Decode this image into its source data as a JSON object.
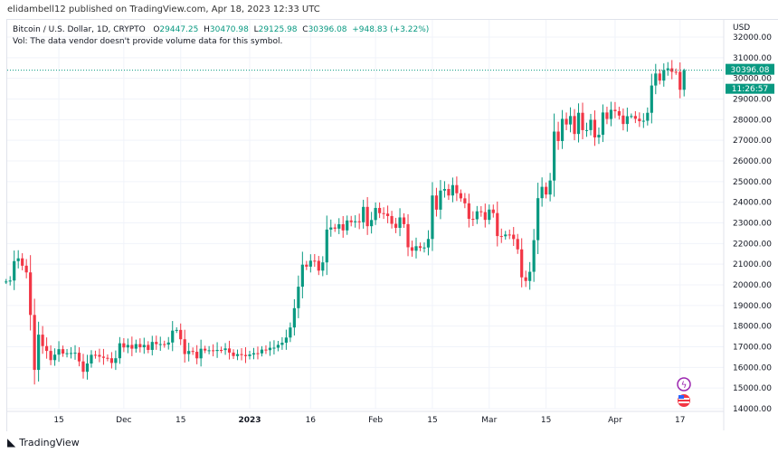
{
  "published": "elidambell12 published on TradingView.com, Apr 18, 2023 12:33 UTC",
  "legend": {
    "symbol": "Bitcoin / U.S. Dollar, 1D, CRYPTO",
    "o_label": "O",
    "o": "29447.25",
    "h_label": "H",
    "h": "30470.98",
    "l_label": "L",
    "l": "29125.98",
    "c_label": "C",
    "c": "30396.08",
    "change": "+948.83 (+3.22%)",
    "vol": "Vol: The data vendor doesn't provide volume data for this symbol."
  },
  "price_tag": {
    "price": "30396.08",
    "countdown": "11:26:57"
  },
  "footer": {
    "brand": "TradingView"
  },
  "colors": {
    "up": "#089981",
    "down": "#f23645",
    "tag": "#089981"
  },
  "chart_data": {
    "type": "candlestick",
    "currency": "USD",
    "start_date": "2022-11-02",
    "first_open": 20150,
    "closes": [
      20160,
      20208,
      21147,
      21282,
      20926,
      20602,
      18541,
      15880,
      17586,
      17034,
      16799,
      16353,
      16618,
      16884,
      16669,
      16687,
      16697,
      16711,
      16291,
      15787,
      16190,
      16610,
      16604,
      16521,
      16464,
      16444,
      16217,
      16444,
      17168,
      16967,
      17088,
      16908,
      17130,
      16974,
      17089,
      16848,
      17234,
      17128,
      17128,
      17104,
      17206,
      17782,
      17815,
      17364,
      16647,
      16796,
      16757,
      16439,
      16906,
      16818,
      16830,
      16796,
      16847,
      16842,
      16919,
      16717,
      16552,
      16642,
      16603,
      16547,
      16625,
      16688,
      16680,
      16863,
      16836,
      16951,
      16955,
      17091,
      17196,
      17446,
      17934,
      18869,
      19909,
      20976,
      20880,
      21169,
      21161,
      20688,
      21086,
      22676,
      22777,
      22720,
      22934,
      22636,
      23117,
      23032,
      23078,
      23031,
      23774,
      22840,
      23139,
      23724,
      23471,
      23449,
      23331,
      22955,
      22760,
      23264,
      22939,
      21819,
      21651,
      21870,
      21788,
      21808,
      22221,
      24327,
      23641,
      24565,
      24641,
      24327,
      24829,
      24436,
      24188,
      23947,
      23198,
      23175,
      23561,
      23522,
      23147,
      23646,
      23475,
      22362,
      22353,
      22435,
      22429,
      22219,
      21718,
      20363,
      20187,
      20632,
      22163,
      24197,
      24746,
      24375,
      25052,
      27423,
      26965,
      28038,
      27767,
      28175,
      27307,
      28333,
      27493,
      27494,
      27994,
      27139,
      27268,
      28348,
      28033,
      28478,
      28411,
      28199,
      27790,
      28168,
      28177,
      28044,
      27925,
      27947,
      28333,
      29653,
      30235,
      29892,
      30399,
      30485,
      30318,
      30315,
      29447,
      30396
    ],
    "y_ticks": [
      "32000.00",
      "31000.00",
      "30000.00",
      "29000.00",
      "28000.00",
      "27000.00",
      "26000.00",
      "25000.00",
      "24000.00",
      "23000.00",
      "22000.00",
      "21000.00",
      "20000.00",
      "19000.00",
      "18000.00",
      "17000.00",
      "16000.00",
      "15000.00",
      "14000.00"
    ],
    "x_ticks": [
      {
        "label": "15",
        "day": -47
      },
      {
        "label": "Dec",
        "day": -31
      },
      {
        "label": "15",
        "day": -17
      },
      {
        "label": "2023",
        "day": 0
      },
      {
        "label": "16",
        "day": 15
      },
      {
        "label": "Feb",
        "day": 31
      },
      {
        "label": "15",
        "day": 45
      },
      {
        "label": "Mar",
        "day": 59
      },
      {
        "label": "15",
        "day": 73
      },
      {
        "label": "Apr",
        "day": 90
      },
      {
        "label": "17",
        "day": 106
      }
    ],
    "ylim": [
      14000,
      32000
    ]
  }
}
